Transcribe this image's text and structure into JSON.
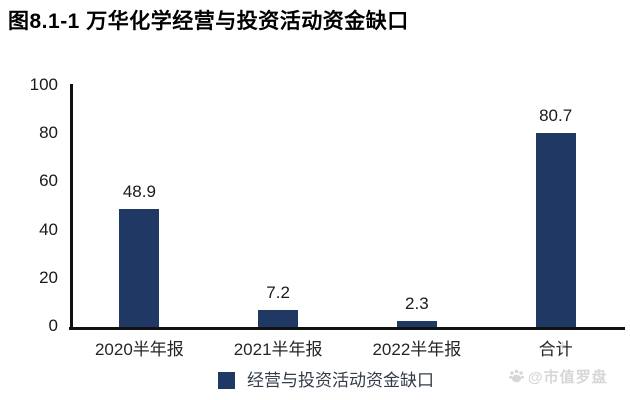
{
  "title": "图8.1-1 万华化学经营与投资活动资金缺口",
  "chart_data": {
    "type": "bar",
    "title": "图8.1-1 万华化学经营与投资活动资金缺口",
    "categories": [
      "2020半年报",
      "2021半年报",
      "2022半年报",
      "合计"
    ],
    "values": [
      48.9,
      7.2,
      2.3,
      80.7
    ],
    "value_labels": [
      "48.9",
      "7.2",
      "2.3",
      "80.7"
    ],
    "xlabel": "",
    "ylabel": "",
    "ylim": [
      0,
      100
    ],
    "yticks": [
      0,
      20,
      40,
      60,
      80,
      100
    ],
    "grid": false,
    "legend_position": "bottom",
    "series_name": "经营与投资活动资金缺口",
    "bar_color": "#1f3864"
  },
  "legend": {
    "label": "经营与投资活动资金缺口"
  },
  "watermark": {
    "icon": "paw-icon",
    "text": "@市值罗盘",
    "cross_glyph": "+"
  },
  "colors": {
    "bar": "#1f3864",
    "axis_line": "#111111",
    "tick_text": "#1a1a1a",
    "title_text": "#000000",
    "legend_text": "#323c49",
    "watermark": "#d7d7d7",
    "background": "#ffffff"
  }
}
